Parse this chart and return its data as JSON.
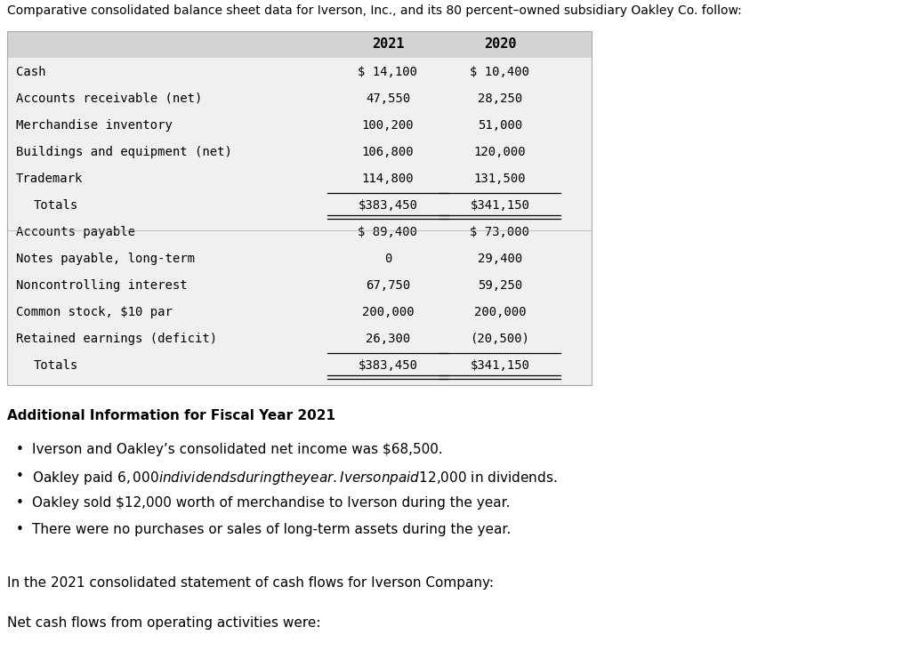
{
  "header_text": "Comparative consolidated balance sheet data for Iverson, Inc., and its 80 percent–owned subsidiary Oakley Co. follow:",
  "col_headers": [
    "2021",
    "2020"
  ],
  "table_rows": [
    [
      "Cash",
      "$ 14,100",
      "$ 10,400"
    ],
    [
      "Accounts receivable (net)",
      "47,550",
      "28,250"
    ],
    [
      "Merchandise inventory",
      "100,200",
      "51,000"
    ],
    [
      "Buildings and equipment (net)",
      "106,800",
      "120,000"
    ],
    [
      "Trademark",
      "114,800",
      "131,500"
    ],
    [
      "  Totals",
      "$383,450",
      "$341,150"
    ],
    [
      "Accounts payable",
      "$ 89,400",
      "$ 73,000"
    ],
    [
      "Notes payable, long-term",
      "0",
      "29,400"
    ],
    [
      "Noncontrolling interest",
      "67,750",
      "59,250"
    ],
    [
      "Common stock, $10 par",
      "200,000",
      "200,000"
    ],
    [
      "Retained earnings (deficit)",
      "26,300",
      "(20,500)"
    ],
    [
      "  Totals",
      "$383,450",
      "$341,150"
    ]
  ],
  "totals_rows": [
    5,
    11
  ],
  "additional_info_title": "Additional Information for Fiscal Year 2021",
  "bullet_points": [
    "Iverson and Oakley’s consolidated net income was $68,500.",
    "Oakley paid $6,000 in dividends during the year. Iverson paid $12,000 in dividends.",
    "Oakley sold $12,000 worth of merchandise to Iverson during the year.",
    "There were no purchases or sales of long-term assets during the year."
  ],
  "footer_line1": "In the 2021 consolidated statement of cash flows for Iverson Company:",
  "footer_line2": "Net cash flows from operating activities were:",
  "bg_color": "#ffffff",
  "table_header_bg": "#d3d3d3",
  "table_body_bg": "#f0f0f0",
  "font_color": "#000000",
  "mono_font": "DejaVu Sans Mono",
  "sans_font": "DejaVu Sans"
}
